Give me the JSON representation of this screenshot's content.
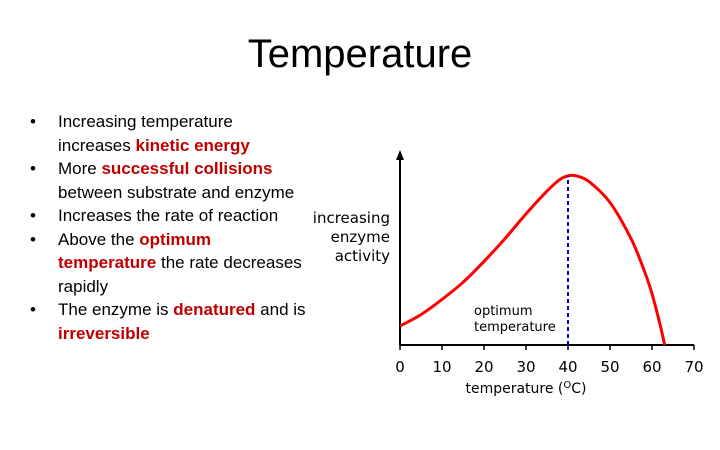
{
  "slide": {
    "title": "Temperature"
  },
  "bullets": [
    [
      {
        "t": "Increasing temperature increases "
      },
      {
        "t": "kinetic energy",
        "hl": true
      }
    ],
    [
      {
        "t": "More "
      },
      {
        "t": "successful collisions",
        "hl": true
      },
      {
        "t": " between substrate and enzyme"
      }
    ],
    [
      {
        "t": "Increases the rate of reaction"
      }
    ],
    [
      {
        "t": "Above the "
      },
      {
        "t": "optimum temperature",
        "hl": true
      },
      {
        "t": " the rate decreases rapidly"
      }
    ],
    [
      {
        "t": "The enzyme is "
      },
      {
        "t": "denatured",
        "hl": true
      },
      {
        "t": " and is "
      },
      {
        "t": "irreversible",
        "hl": true
      }
    ]
  ],
  "bullet_symbol": "•",
  "colors": {
    "highlight": "#c00000",
    "curve": "#ff0000",
    "optimum_line": "#0000cc"
  },
  "chart_data": {
    "type": "line",
    "ylabel_lines": [
      "increasing",
      "enzyme",
      "activity"
    ],
    "xlabel": "temperature (",
    "xlabel_unit_sup": "O",
    "xlabel_unit_end": "C)",
    "xlim": [
      0,
      70
    ],
    "ylim": [
      0,
      100
    ],
    "x_ticks": [
      0,
      10,
      20,
      30,
      40,
      50,
      60,
      70
    ],
    "series": [
      {
        "x": [
          0,
          5,
          10,
          15,
          20,
          25,
          30,
          35,
          38,
          40,
          42,
          45,
          50,
          55,
          58,
          60,
          62,
          63
        ],
        "y": [
          10,
          16,
          24,
          33,
          44,
          56,
          69,
          81,
          87,
          89,
          89,
          86,
          75,
          56,
          40,
          27,
          10,
          0
        ]
      }
    ],
    "optimum": {
      "x": 40,
      "label_lines": [
        "optimum",
        "temperature"
      ]
    }
  }
}
